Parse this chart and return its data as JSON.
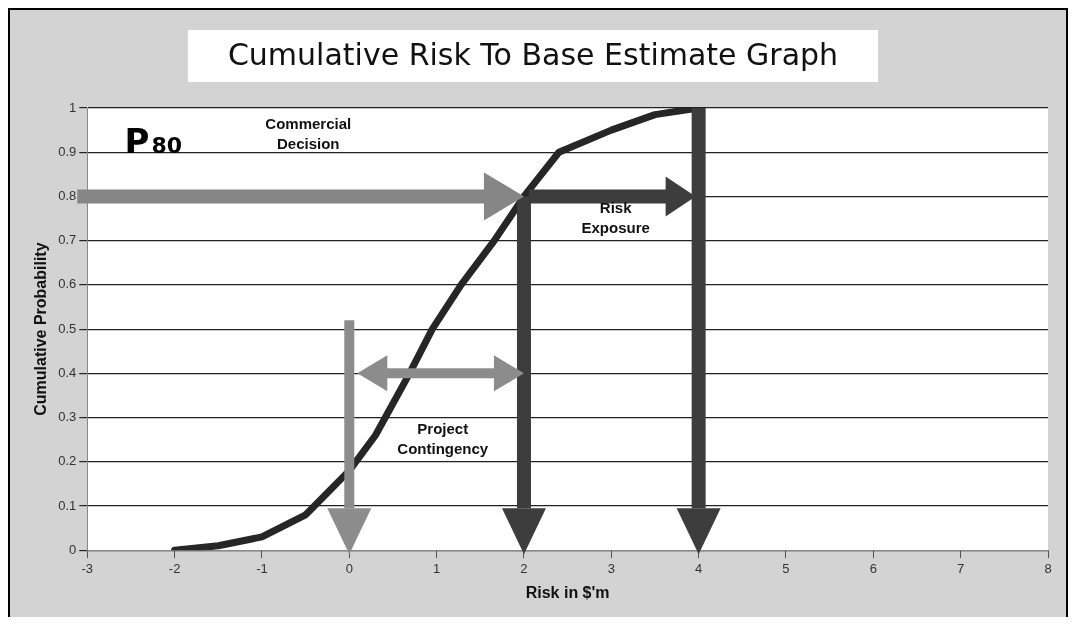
{
  "chart_data": {
    "type": "line",
    "title": "Cumulative Risk To Base Estimate Graph",
    "xlabel": "Risk in $'m",
    "ylabel": "Cumulative Probability",
    "x": [
      -2,
      -1.5,
      -1,
      -0.5,
      0,
      0.3,
      0.69,
      0.95,
      1.28,
      1.66,
      2,
      2.4,
      3,
      3.5,
      4
    ],
    "series": [
      {
        "color": "#262626",
        "values": [
          0,
          0.01,
          0.03,
          0.08,
          0.18,
          0.26,
          0.4,
          0.5,
          0.6,
          0.7,
          0.8,
          0.9,
          0.95,
          0.985,
          1
        ]
      }
    ],
    "xlim": [
      -3,
      8
    ],
    "xticks": [
      -3,
      -2,
      -1,
      0,
      1,
      2,
      3,
      4,
      5,
      6,
      7,
      8
    ],
    "ylim": [
      0,
      1
    ],
    "yticks": [
      0,
      0.1,
      0.2,
      0.3,
      0.4,
      0.5,
      0.6,
      0.7,
      0.8,
      0.9,
      1
    ],
    "grid": "y",
    "legend": false,
    "marker": "none",
    "line_style": "solid",
    "ref_lines": [
      {
        "axis": "y",
        "value": 0.8,
        "color": "#868686"
      },
      {
        "axis": "y",
        "value": 0.8,
        "color": "#3d3d3d"
      },
      {
        "axis": "y",
        "value": 0.4,
        "color": "#8c8c8c"
      },
      {
        "axis": "x",
        "value": 0,
        "color": "#8c8c8c"
      },
      {
        "axis": "x",
        "value": 2,
        "color": "#3d3d3d"
      },
      {
        "axis": "x",
        "value": 4,
        "color": "#3d3d3d"
      }
    ],
    "annotations": [
      "P$_{80}$",
      "Commercial Decision",
      "Risk Exposure",
      "Project Contingency"
    ]
  }
}
